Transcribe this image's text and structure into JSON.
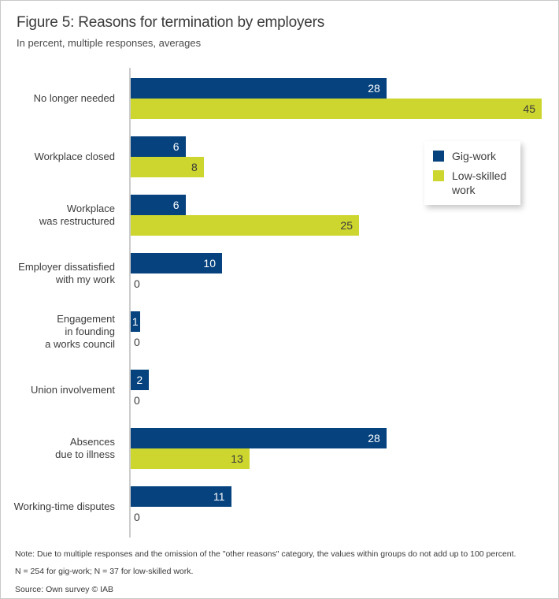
{
  "figure": {
    "title": "Figure 5: Reasons for termination by employers",
    "subtitle": "In percent, multiple responses, averages",
    "note_line1": "Note: Due to multiple responses and the omission of the \"other reasons\" category, the values within groups do not add up to 100 percent.",
    "note_line2": "N = 254 for gig-work; N = 37 for low-skilled work.",
    "source": "Source: Own survey  © IAB"
  },
  "chart_data": {
    "type": "bar",
    "orientation": "horizontal",
    "title": "Figure 5: Reasons for termination by employers",
    "subtitle": "In percent, multiple responses, averages",
    "xlabel": "",
    "ylabel": "",
    "xlim": [
      0,
      46.5
    ],
    "grid": false,
    "value_labels": true,
    "legend_position": "inside-right",
    "axis_color": "#cccccc",
    "categories": [
      "No longer needed",
      "Workplace closed",
      "Workplace\nwas restructured",
      "Employer dissatisfied\nwith my work",
      "Engagement\nin founding\na works council",
      "Union involvement",
      "Absences\ndue to illness",
      "Working-time disputes"
    ],
    "series": [
      {
        "name": "Gig-work",
        "color": "#05427e",
        "label_color": "#ffffff",
        "values": [
          28,
          6,
          6,
          10,
          1,
          2,
          28,
          11
        ]
      },
      {
        "name": "Low-skilled work",
        "color": "#cdd62e",
        "label_color": "#3a3a3a",
        "values": [
          45,
          8,
          25,
          0,
          0,
          0,
          13,
          0
        ]
      }
    ]
  }
}
